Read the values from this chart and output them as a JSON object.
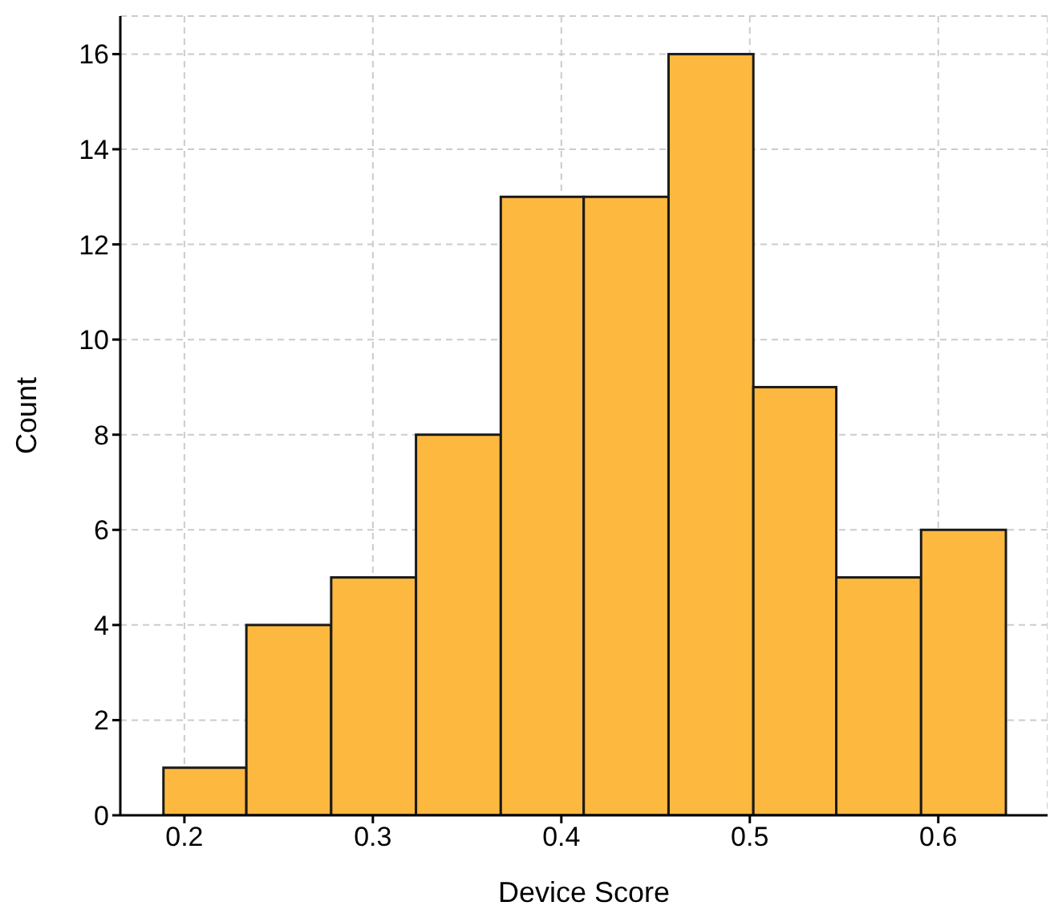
{
  "chart_data": {
    "type": "histogram",
    "xlabel": "Device Score",
    "ylabel": "Count",
    "bins": [
      0.189,
      0.233,
      0.278,
      0.323,
      0.368,
      0.412,
      0.457,
      0.502,
      0.546,
      0.591,
      0.636
    ],
    "values": [
      1,
      4,
      5,
      8,
      13,
      13,
      16,
      9,
      5,
      6
    ],
    "color": "#fdb93f",
    "xlim": [
      0.166,
      0.658
    ],
    "xticks": [
      {
        "value": 0.2,
        "label": "0.2"
      },
      {
        "value": 0.3,
        "label": "0.3"
      },
      {
        "value": 0.4,
        "label": "0.4"
      },
      {
        "value": 0.5,
        "label": "0.5"
      },
      {
        "value": 0.6,
        "label": "0.6"
      }
    ],
    "ylim": [
      0,
      16.8
    ],
    "yticks": [
      0,
      2,
      4,
      6,
      8,
      10,
      12,
      14,
      16
    ],
    "grid": true
  }
}
